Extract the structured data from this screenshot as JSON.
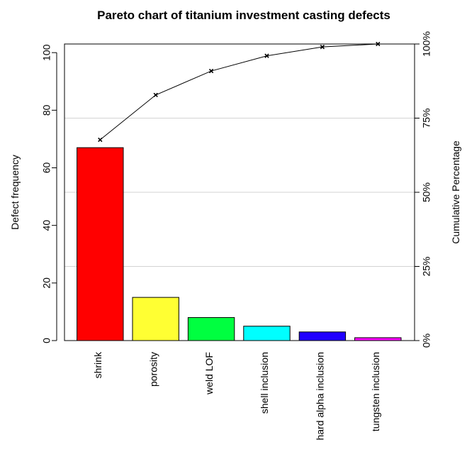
{
  "chart_data": {
    "type": "bar",
    "title": "Pareto chart of titanium investment casting defects",
    "ylabel": "Defect frequency",
    "y2label": "Cumulative Percentage",
    "xlabel": "",
    "categories": [
      "shrink",
      "porosity",
      "weld LOF",
      "shell inclusion",
      "hard alpha inclusion",
      "tungsten inclusion"
    ],
    "values": [
      67,
      15,
      8,
      5,
      3,
      1
    ],
    "bar_colors": [
      "#ff0000",
      "#ffff33",
      "#00ff40",
      "#00ffff",
      "#2000ff",
      "#ff00ff"
    ],
    "cumulative_percentage": [
      67.7,
      82.8,
      90.9,
      96.0,
      99.0,
      100.0
    ],
    "ylim": [
      0,
      103
    ],
    "yticks": [
      0,
      20,
      40,
      60,
      80,
      100
    ],
    "ytick_labels": [
      "0",
      "20",
      "40",
      "60",
      "80",
      "100"
    ],
    "y2ticks": [
      0,
      25,
      50,
      75,
      100
    ],
    "y2tick_labels": [
      "0%",
      "25%",
      "50%",
      "75%",
      "100%"
    ],
    "grid": true,
    "legend": "none"
  }
}
